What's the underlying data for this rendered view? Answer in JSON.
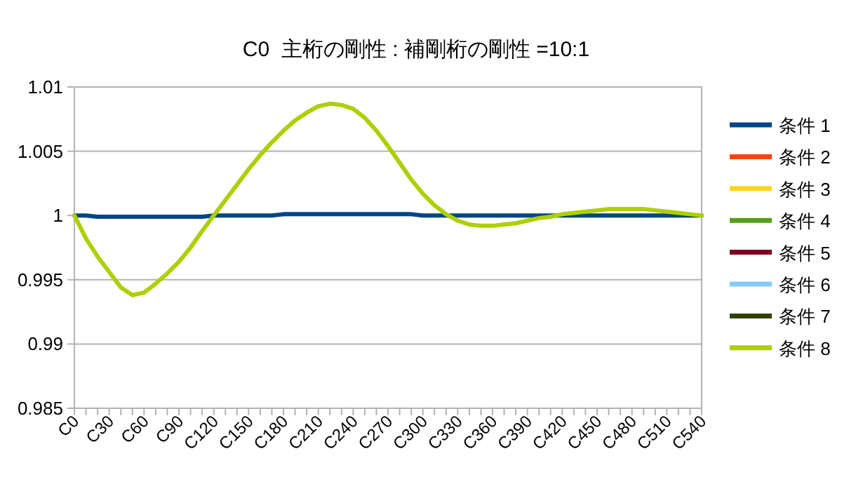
{
  "chart_data": {
    "type": "line",
    "title": "C0  主桁の剛性 : 補剛桁の剛性 =10:1",
    "categories": [
      "C0",
      null,
      null,
      "C30",
      null,
      null,
      "C60",
      null,
      null,
      "C90",
      null,
      null,
      "C120",
      null,
      null,
      "C150",
      null,
      null,
      "C180",
      null,
      null,
      "C210",
      null,
      null,
      "C240",
      null,
      null,
      "C270",
      null,
      null,
      "C300",
      null,
      null,
      "C330",
      null,
      null,
      "C360",
      null,
      null,
      "C390",
      null,
      null,
      "C420",
      null,
      null,
      "C450",
      null,
      null,
      "C480",
      null,
      null,
      "C510",
      null,
      null,
      "C540"
    ],
    "ylim": [
      0.985,
      1.01
    ],
    "yticks": [
      0.985,
      0.99,
      0.995,
      1,
      1.005,
      1.01
    ],
    "grid": "y",
    "legend": "right",
    "series": [
      {
        "name": "条件 1",
        "color": "#004586",
        "values": [
          1.0,
          1.0,
          0.9999,
          0.9999,
          0.9999,
          0.9999,
          0.9999,
          0.9999,
          0.9999,
          0.9999,
          0.9999,
          0.9999,
          1.0,
          1.0,
          1.0,
          1.0,
          1.0,
          1.0,
          1.0001,
          1.0001,
          1.0001,
          1.0001,
          1.0001,
          1.0001,
          1.0001,
          1.0001,
          1.0001,
          1.0001,
          1.0001,
          1.0001,
          1.0,
          1.0,
          1.0,
          1.0,
          1.0,
          1.0,
          1.0,
          1.0,
          1.0,
          1.0,
          1.0,
          1.0,
          1.0,
          1.0,
          1.0,
          1.0,
          1.0,
          1.0,
          1.0,
          1.0,
          1.0,
          1.0,
          1.0,
          1.0,
          1.0
        ]
      },
      {
        "name": "条件 2",
        "color": "#ff420e",
        "values": [
          null,
          null,
          null,
          null,
          null,
          null,
          null,
          null,
          null,
          null,
          null,
          null,
          null,
          null,
          null,
          null,
          null,
          null,
          null,
          null,
          null,
          null,
          null,
          null,
          null,
          null,
          null,
          null,
          null,
          null,
          null,
          null,
          null,
          null,
          null,
          null,
          null,
          null,
          null,
          null,
          null,
          null,
          null,
          null,
          null,
          null,
          null,
          null,
          null,
          null,
          null,
          null,
          null,
          null,
          null
        ]
      },
      {
        "name": "条件 3",
        "color": "#ffd320",
        "values": [
          null,
          null,
          null,
          null,
          null,
          null,
          null,
          null,
          null,
          null,
          null,
          null,
          null,
          null,
          null,
          null,
          null,
          null,
          null,
          null,
          null,
          null,
          null,
          null,
          null,
          null,
          null,
          null,
          null,
          null,
          null,
          null,
          null,
          null,
          null,
          null,
          null,
          null,
          null,
          null,
          null,
          null,
          null,
          null,
          null,
          null,
          null,
          null,
          null,
          null,
          null,
          null,
          null,
          null,
          null
        ]
      },
      {
        "name": "条件 4",
        "color": "#579d1c",
        "values": [
          null,
          null,
          null,
          null,
          null,
          null,
          null,
          null,
          null,
          null,
          null,
          null,
          null,
          null,
          null,
          null,
          null,
          null,
          null,
          null,
          null,
          null,
          null,
          null,
          null,
          null,
          null,
          null,
          null,
          null,
          null,
          null,
          null,
          null,
          null,
          null,
          null,
          null,
          null,
          null,
          null,
          null,
          null,
          null,
          null,
          null,
          null,
          null,
          null,
          null,
          null,
          null,
          null,
          null,
          null
        ]
      },
      {
        "name": "条件 5",
        "color": "#7e0021",
        "values": [
          null,
          null,
          null,
          null,
          null,
          null,
          null,
          null,
          null,
          null,
          null,
          null,
          null,
          null,
          null,
          null,
          null,
          null,
          null,
          null,
          null,
          null,
          null,
          null,
          null,
          null,
          null,
          null,
          null,
          null,
          null,
          null,
          null,
          null,
          null,
          null,
          null,
          null,
          null,
          null,
          null,
          null,
          null,
          null,
          null,
          null,
          null,
          null,
          null,
          null,
          null,
          null,
          null,
          null,
          null
        ]
      },
      {
        "name": "条件 6",
        "color": "#83caff",
        "values": [
          null,
          null,
          null,
          null,
          null,
          null,
          null,
          null,
          null,
          null,
          null,
          null,
          null,
          null,
          null,
          null,
          null,
          null,
          null,
          null,
          null,
          null,
          null,
          null,
          null,
          null,
          null,
          null,
          null,
          null,
          null,
          null,
          null,
          null,
          null,
          null,
          null,
          null,
          null,
          null,
          null,
          null,
          null,
          null,
          null,
          null,
          null,
          null,
          null,
          null,
          null,
          null,
          null,
          null,
          null
        ]
      },
      {
        "name": "条件 7",
        "color": "#314004",
        "values": [
          null,
          null,
          null,
          null,
          null,
          null,
          null,
          null,
          null,
          null,
          null,
          null,
          null,
          null,
          null,
          null,
          null,
          null,
          null,
          null,
          null,
          null,
          null,
          null,
          null,
          null,
          null,
          null,
          null,
          null,
          null,
          null,
          null,
          null,
          null,
          null,
          null,
          null,
          null,
          null,
          null,
          null,
          null,
          null,
          null,
          null,
          null,
          null,
          null,
          null,
          null,
          null,
          null,
          null,
          null
        ]
      },
      {
        "name": "条件 8",
        "color": "#aecf00",
        "values": [
          1.0,
          0.9982,
          0.9968,
          0.9956,
          0.9944,
          0.9938,
          0.994,
          0.9947,
          0.9955,
          0.9964,
          0.9975,
          0.9988,
          1.0,
          1.0012,
          1.0024,
          1.0036,
          1.0047,
          1.0057,
          1.0066,
          1.0074,
          1.008,
          1.0085,
          1.0087,
          1.0086,
          1.0083,
          1.0076,
          1.0066,
          1.0054,
          1.0041,
          1.0028,
          1.0017,
          1.0008,
          1.0001,
          0.9996,
          0.9993,
          0.9992,
          0.9992,
          0.9993,
          0.9994,
          0.9996,
          0.9998,
          0.9999,
          1.0001,
          1.0002,
          1.0003,
          1.0004,
          1.0005,
          1.0005,
          1.0005,
          1.0005,
          1.0004,
          1.0003,
          1.0002,
          1.0001,
          1.0
        ]
      }
    ]
  }
}
